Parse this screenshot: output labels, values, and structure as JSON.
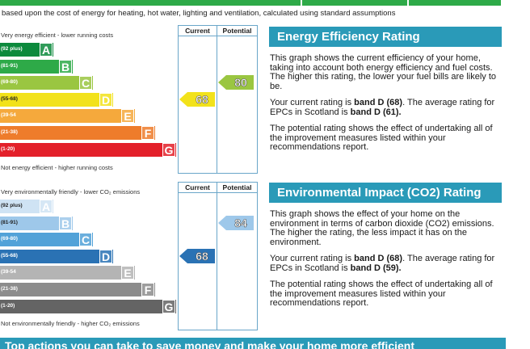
{
  "intro_text": "based upon the cost of energy for heating, hot water, lighting and ventilation, calculated using standard assumptions",
  "colors": {
    "accent": "#2a9ab8",
    "frame": "#6aa6c9"
  },
  "energy_chart": {
    "col_current": "Current",
    "col_potential": "Potential",
    "top_label": "Very energy efficient - lower running costs",
    "bottom_label": "Not energy efficient - higher running costs",
    "bands": [
      {
        "range": "(92 plus)",
        "letter": "A",
        "color": "#0c8a3c"
      },
      {
        "range": "(81-91)",
        "letter": "B",
        "color": "#2eaa48"
      },
      {
        "range": "(69-80)",
        "letter": "C",
        "color": "#9ac641"
      },
      {
        "range": "(55-68)",
        "letter": "D",
        "color": "#f2e21b"
      },
      {
        "range": "(39-54",
        "letter": "E",
        "color": "#f5a93c"
      },
      {
        "range": "(21-38)",
        "letter": "F",
        "color": "#ee7c2b"
      },
      {
        "range": "(1-20)",
        "letter": "G",
        "color": "#e3202a"
      }
    ],
    "current": {
      "value": "68",
      "color": "#f2e21b"
    },
    "potential": {
      "value": "80",
      "color": "#9ac641"
    }
  },
  "env_chart": {
    "col_current": "Current",
    "col_potential": "Potential",
    "top_label": "Very environmentally friendly - lower CO₂ emissions",
    "bottom_label": "Not environmentally friendly - higher CO₂ emissions",
    "bands": [
      {
        "range": "(92 plus)",
        "letter": "A",
        "color": "#cfe3f4"
      },
      {
        "range": "(81-91)",
        "letter": "B",
        "color": "#9ec8ea"
      },
      {
        "range": "(69-80)",
        "letter": "C",
        "color": "#52a2d8"
      },
      {
        "range": "(55-68)",
        "letter": "D",
        "color": "#2a72b4"
      },
      {
        "range": "(39-54",
        "letter": "E",
        "color": "#b4b4b4"
      },
      {
        "range": "(21-38)",
        "letter": "F",
        "color": "#8c8c8c"
      },
      {
        "range": "(1-20)",
        "letter": "G",
        "color": "#646464"
      }
    ],
    "current": {
      "value": "68",
      "color": "#2a72b4"
    },
    "potential": {
      "value": "84",
      "color": "#9ec8ea"
    }
  },
  "energy_panel": {
    "title": "Energy Efficiency Rating",
    "p1": "This graph shows the current efficiency of your home, taking into account both energy efficiency and fuel costs. The higher this rating, the lower your fuel bills are likely to be.",
    "p2_a": "Your current rating is ",
    "p2_b": "band D (68)",
    "p2_c": ". The average rating for EPCs in Scotland is ",
    "p2_d": "band D (61).",
    "p3": "The potential rating shows the effect of undertaking all of the improvement measures listed within your recommendations report."
  },
  "env_panel": {
    "title": "Environmental Impact (CO2) Rating",
    "p1": "This graph shows the effect of your home on the environment in terms of carbon dioxide (CO2) emissions. The higher the rating, the less impact it has on the environment.",
    "p2_a": "Your current rating is ",
    "p2_b": "band D (68)",
    "p2_c": ". The average rating for EPCs in Scotland is ",
    "p2_d": "band D (59).",
    "p3": "The potential rating shows the effect of undertaking all of the improvement measures listed within your recommendations report."
  },
  "bottom_banner": "Top actions you can take to save money and make your home more efficient"
}
